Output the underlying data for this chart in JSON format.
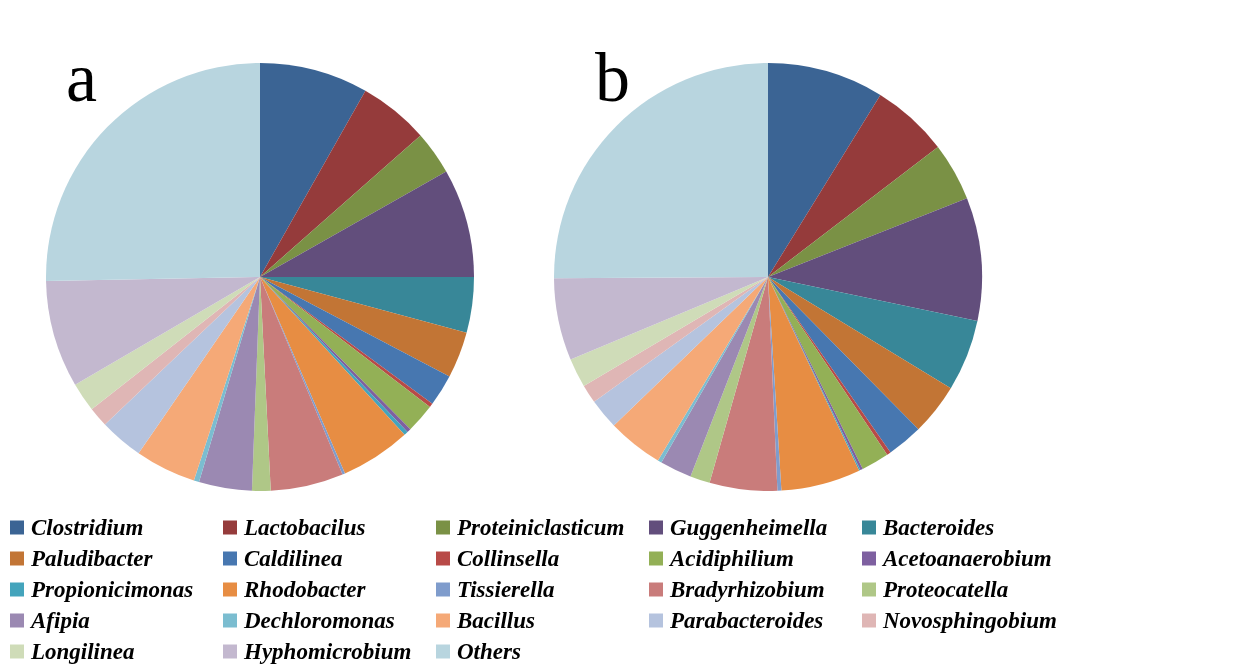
{
  "chart_data": {
    "type": "pie",
    "categories": [
      "Clostridium",
      "Lactobacilus",
      "Proteiniclasticum",
      "Guggenheimella",
      "Bacteroides",
      "Paludibacter",
      "Caldilinea",
      "Collinsella",
      "Acidiphilium",
      "Acetoanaerobium",
      "Propionicimonas",
      "Rhodobacter",
      "Tissierella",
      "Bradyrhizobium",
      "Proteocatella",
      "Afipia",
      "Dechloromonas",
      "Bacillus",
      "Parabacteroides",
      "Novosphingobium",
      "Longilinea",
      "Hyphomicrobium",
      "Others"
    ],
    "colors": [
      "#3b6494",
      "#953b3b",
      "#7a9145",
      "#624e7c",
      "#388798",
      "#c27535",
      "#4777b0",
      "#b84a47",
      "#93b056",
      "#7e60a0",
      "#44a4bc",
      "#e78d43",
      "#7f9ccc",
      "#c97c7b",
      "#afc787",
      "#9b89b2",
      "#7bbdd0",
      "#f5a977",
      "#b5c3de",
      "#dfb6b5",
      "#cfdcb8",
      "#c3b8cf",
      "#b8d5df"
    ],
    "series": [
      {
        "name": "a",
        "values": [
          8.2,
          5.3,
          3.3,
          8.2,
          4.2,
          3.5,
          2.4,
          0.3,
          2.2,
          0.3,
          0.3,
          5.3,
          0.2,
          5.5,
          1.4,
          4.0,
          0.4,
          4.6,
          3.3,
          1.5,
          2.2,
          8.1,
          25.3
        ]
      },
      {
        "name": "b",
        "values": [
          8.8,
          5.8,
          4.4,
          9.3,
          5.4,
          3.9,
          2.7,
          0.3,
          2.1,
          0.2,
          0.1,
          6.0,
          0.3,
          5.1,
          1.5,
          2.4,
          0.3,
          4.2,
          2.3,
          1.4,
          2.2,
          6.2,
          25.1
        ]
      }
    ],
    "legend": "bottom"
  }
}
